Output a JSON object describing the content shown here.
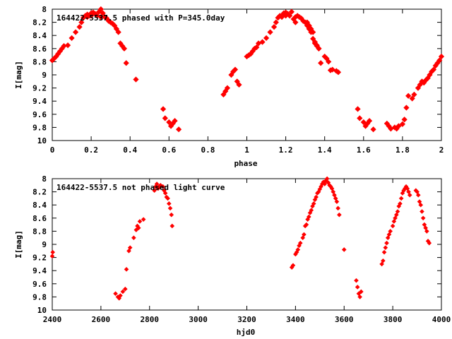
{
  "colors": {
    "points": "#ff0000",
    "axes": "#000000",
    "background": "#ffffff"
  },
  "chart_data": [
    {
      "type": "scatter",
      "title": "164422-5537.5 phased with P=345.0day",
      "xlabel": "phase",
      "ylabel": "I[mag]",
      "xlim": [
        0,
        2
      ],
      "ylim": [
        8,
        10
      ],
      "y_inverted": true,
      "grid": false,
      "x_ticks": [
        0,
        0.2,
        0.4,
        0.6,
        0.8,
        1,
        1.2,
        1.4,
        1.6,
        1.8,
        2
      ],
      "x_tick_labels": [
        "0",
        "0.2",
        "0.4",
        "0.6",
        "0.8",
        "1",
        "1.2",
        "1.4",
        "1.6",
        "1.8",
        "2"
      ],
      "y_ticks": [
        8,
        8.2,
        8.4,
        8.6,
        8.8,
        9,
        9.2,
        9.4,
        9.6,
        9.8,
        10
      ],
      "y_tick_labels": [
        "8",
        "8.2",
        "8.4",
        "8.6",
        "8.8",
        "9",
        "9.2",
        "9.4",
        "9.6",
        "9.8",
        "10"
      ],
      "marker": "diamond",
      "series": [
        {
          "x": [
            0.0,
            0.01,
            0.02,
            0.03,
            0.04,
            0.05,
            0.06,
            0.08,
            0.1,
            0.12,
            0.14,
            0.15,
            0.16,
            0.17,
            0.18,
            0.18,
            0.19,
            0.2,
            0.2,
            0.21,
            0.22,
            0.23,
            0.24,
            0.25,
            0.25,
            0.26,
            0.27,
            0.28,
            0.29,
            0.3,
            0.31,
            0.32,
            0.33,
            0.34,
            0.35,
            0.36,
            0.37,
            0.38,
            0.43,
            0.57,
            0.58,
            0.6,
            0.61,
            0.62,
            0.63,
            0.65,
            1.0,
            1.01,
            1.02,
            1.03,
            1.04,
            1.05,
            1.06,
            1.08,
            1.1,
            1.12,
            1.14,
            1.15,
            1.16,
            1.17,
            1.18,
            1.18,
            1.19,
            1.2,
            1.2,
            1.21,
            1.22,
            1.23,
            1.24,
            1.25,
            1.25,
            1.26,
            1.27,
            1.28,
            1.29,
            1.3,
            1.31,
            1.32,
            1.33,
            1.34,
            1.35,
            1.36,
            1.37,
            1.38,
            1.43,
            1.57,
            1.58,
            1.6,
            1.61,
            1.62,
            1.63,
            1.65,
            0.88,
            0.89,
            0.9,
            0.92,
            0.93,
            0.94,
            0.95,
            0.96,
            1.31,
            1.31,
            1.32,
            1.33,
            1.34,
            1.35,
            1.36,
            1.37,
            1.4,
            1.41,
            1.42,
            1.44,
            1.46,
            1.47,
            1.72,
            1.73,
            1.74,
            1.76,
            1.77,
            1.78,
            1.8,
            1.81,
            1.82,
            1.83,
            1.85,
            1.86,
            1.88,
            1.89,
            1.9,
            1.91,
            1.92,
            1.93,
            1.94,
            1.95,
            1.96,
            1.97,
            1.98,
            1.99,
            2.0
          ],
          "y": [
            8.78,
            8.75,
            8.72,
            8.68,
            8.64,
            8.6,
            8.56,
            8.55,
            8.44,
            8.35,
            8.27,
            8.2,
            8.13,
            8.1,
            8.08,
            8.12,
            8.1,
            8.06,
            8.1,
            8.05,
            8.07,
            8.1,
            8.04,
            8.0,
            8.12,
            8.06,
            8.12,
            8.14,
            8.18,
            8.2,
            8.22,
            8.25,
            8.3,
            8.35,
            8.52,
            8.56,
            8.6,
            8.82,
            9.07,
            9.52,
            9.66,
            9.72,
            9.78,
            9.74,
            9.7,
            9.83,
            8.72,
            8.7,
            8.68,
            8.64,
            8.6,
            8.58,
            8.52,
            8.5,
            8.44,
            8.35,
            8.27,
            8.2,
            8.13,
            8.1,
            8.12,
            8.1,
            8.06,
            8.1,
            8.05,
            8.07,
            8.1,
            8.04,
            8.15,
            8.2,
            8.12,
            8.1,
            8.12,
            8.14,
            8.18,
            8.2,
            8.22,
            8.25,
            8.3,
            8.35,
            8.52,
            8.56,
            8.6,
            8.82,
            8.93,
            9.52,
            9.66,
            9.72,
            9.78,
            9.74,
            9.7,
            9.83,
            9.3,
            9.25,
            9.2,
            9.0,
            8.95,
            8.92,
            9.1,
            9.15,
            8.2,
            8.25,
            8.3,
            8.35,
            8.45,
            8.5,
            8.55,
            8.6,
            8.72,
            8.75,
            8.8,
            8.92,
            8.94,
            8.96,
            9.74,
            9.78,
            9.82,
            9.8,
            9.82,
            9.78,
            9.75,
            9.68,
            9.5,
            9.32,
            9.36,
            9.3,
            9.2,
            9.15,
            9.1,
            9.12,
            9.08,
            9.05,
            9.0,
            8.95,
            8.92,
            8.86,
            8.82,
            8.78,
            8.72
          ]
        }
      ]
    },
    {
      "type": "scatter",
      "title": "164422-5537.5 not phased light curve",
      "xlabel": "hjd0",
      "ylabel": "I[mag]",
      "xlim": [
        2400,
        4000
      ],
      "ylim": [
        8,
        10
      ],
      "y_inverted": true,
      "grid": false,
      "x_ticks": [
        2400,
        2600,
        2800,
        3000,
        3200,
        3400,
        3600,
        3800,
        4000
      ],
      "x_tick_labels": [
        "2400",
        "2600",
        "2800",
        "3000",
        "3200",
        "3400",
        "3600",
        "3800",
        "4000"
      ],
      "y_ticks": [
        8,
        8.2,
        8.4,
        8.6,
        8.8,
        9,
        9.2,
        9.4,
        9.6,
        9.8,
        10
      ],
      "y_tick_labels": [
        "8",
        "8.2",
        "8.4",
        "8.6",
        "8.8",
        "9",
        "9.2",
        "9.4",
        "9.6",
        "9.8",
        "10"
      ],
      "marker": "diamond",
      "series": [
        {
          "x": [
            2400,
            2402,
            2660,
            2670,
            2675,
            2680,
            2690,
            2700,
            2705,
            2715,
            2720,
            2735,
            2745,
            2750,
            2755,
            2760,
            2775,
            2820,
            2825,
            2830,
            2835,
            2840,
            2845,
            2855,
            2860,
            2865,
            2870,
            2875,
            2880,
            2885,
            2890,
            2893,
            3385,
            3390,
            3400,
            3405,
            3410,
            3415,
            3420,
            3430,
            3435,
            3440,
            3445,
            3450,
            3455,
            3460,
            3465,
            3470,
            3475,
            3480,
            3485,
            3490,
            3495,
            3500,
            3505,
            3510,
            3515,
            3520,
            3525,
            3530,
            3535,
            3540,
            3545,
            3550,
            3555,
            3560,
            3565,
            3570,
            3575,
            3580,
            3600,
            3650,
            3655,
            3660,
            3665,
            3670,
            3755,
            3760,
            3765,
            3770,
            3775,
            3780,
            3785,
            3790,
            3800,
            3805,
            3810,
            3815,
            3820,
            3825,
            3830,
            3835,
            3840,
            3845,
            3850,
            3855,
            3860,
            3865,
            3870,
            3895,
            3900,
            3905,
            3910,
            3915,
            3920,
            3925,
            3930,
            3935,
            3940,
            3945,
            3950
          ],
          "y": [
            9.18,
            9.12,
            9.75,
            9.8,
            9.82,
            9.78,
            9.72,
            9.68,
            9.38,
            9.1,
            9.05,
            8.9,
            8.78,
            8.72,
            8.75,
            8.65,
            8.62,
            8.18,
            8.12,
            8.08,
            8.15,
            8.12,
            8.1,
            8.12,
            8.18,
            8.22,
            8.28,
            8.3,
            8.38,
            8.45,
            8.55,
            8.72,
            9.35,
            9.32,
            9.15,
            9.12,
            9.08,
            9.02,
            8.98,
            8.9,
            8.85,
            8.72,
            8.7,
            8.62,
            8.58,
            8.52,
            8.48,
            8.42,
            8.38,
            8.32,
            8.28,
            8.22,
            8.2,
            8.16,
            8.12,
            8.08,
            8.05,
            8.08,
            8.03,
            8.0,
            8.06,
            8.1,
            8.12,
            8.15,
            8.2,
            8.25,
            8.3,
            8.35,
            8.45,
            8.55,
            9.08,
            9.55,
            9.65,
            9.75,
            9.8,
            9.72,
            9.3,
            9.25,
            9.12,
            9.05,
            8.98,
            8.9,
            8.85,
            8.8,
            8.72,
            8.65,
            8.6,
            8.55,
            8.5,
            8.42,
            8.38,
            8.3,
            8.22,
            8.18,
            8.15,
            8.12,
            8.15,
            8.2,
            8.25,
            8.18,
            8.2,
            8.25,
            8.35,
            8.4,
            8.5,
            8.6,
            8.7,
            8.75,
            8.8,
            8.95,
            8.98
          ]
        }
      ]
    }
  ]
}
